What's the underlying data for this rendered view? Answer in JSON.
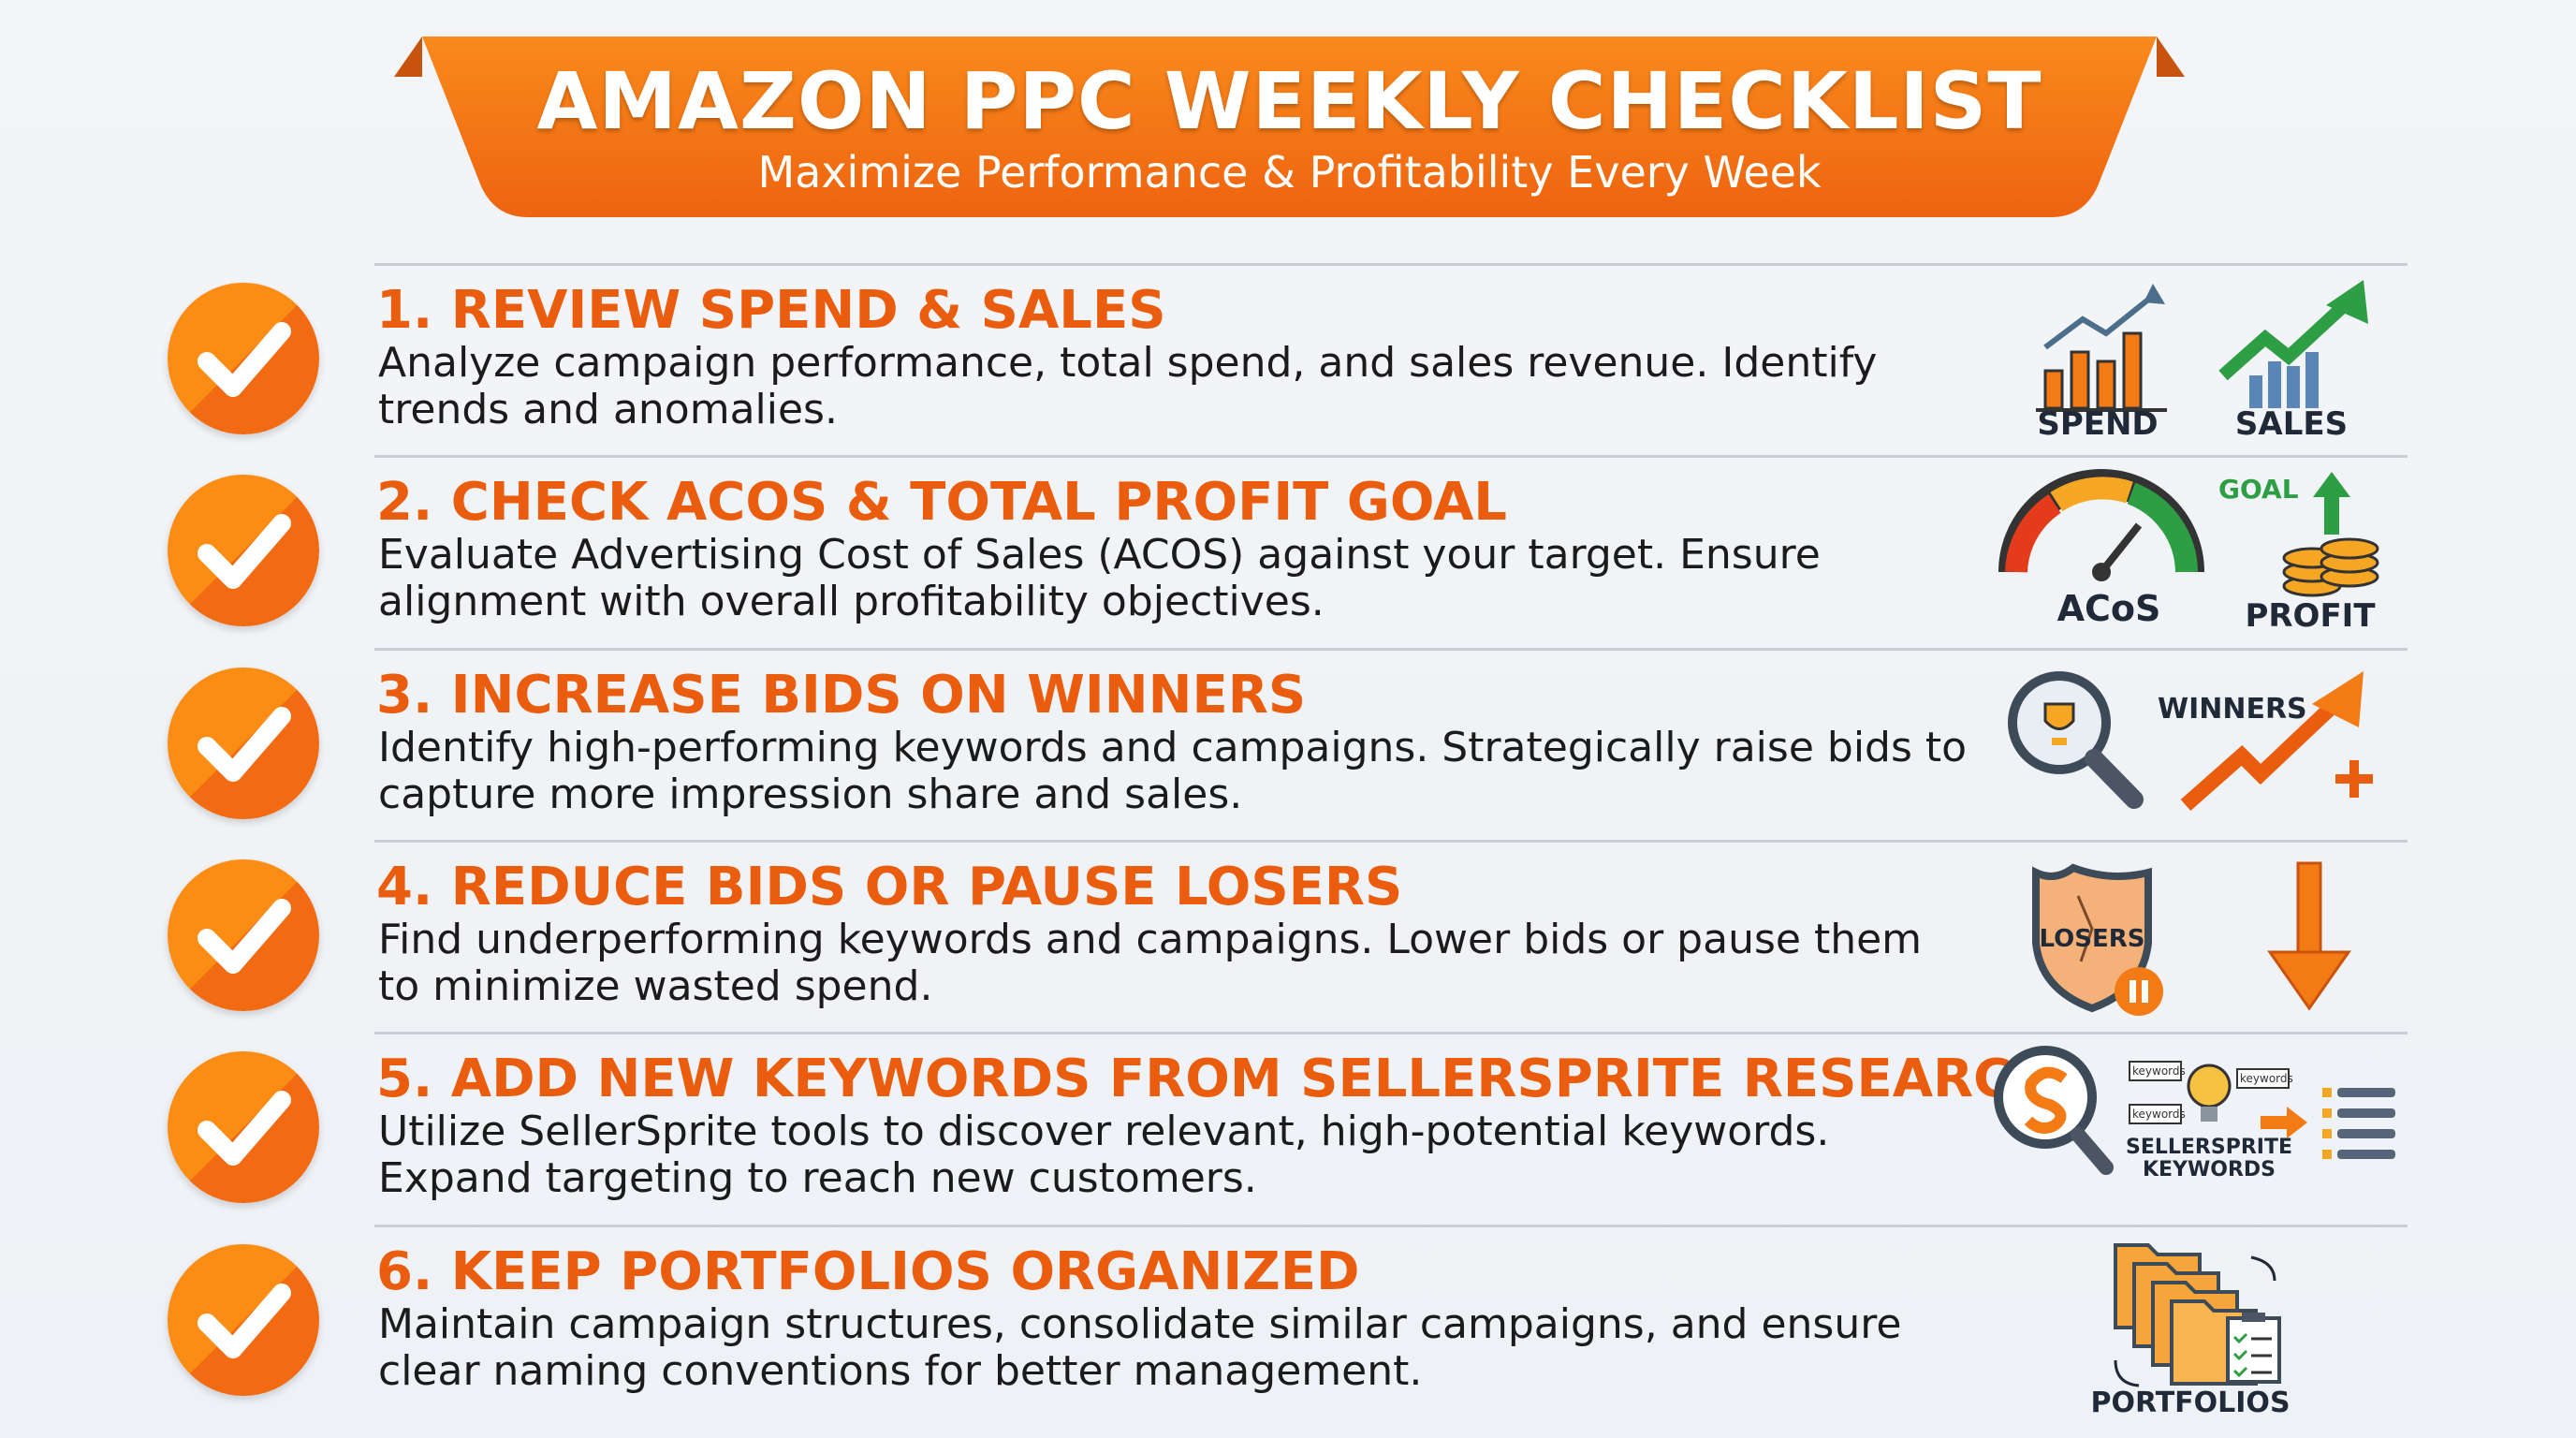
{
  "header": {
    "title": "AMAZON PPC WEEKLY CHECKLIST",
    "subtitle": "Maximize Performance & Profitability Every Week"
  },
  "colors": {
    "accent": "#ea5d0f",
    "banner": "#f47a16",
    "check": "#fb8c14",
    "green": "#2e9e45",
    "dark": "#1f2937"
  },
  "items": [
    {
      "heading": "1. REVIEW SPEND & SALES",
      "desc": "Analyze campaign performance, total spend, and sales revenue. Identify trends and anomalies.",
      "icon_labels": [
        "SPEND",
        "SALES"
      ],
      "icons": [
        "bar-chart-icon",
        "trending-up-chart-icon"
      ]
    },
    {
      "heading": "2. CHECK ACOS & TOTAL PROFIT GOAL",
      "desc": "Evaluate Advertising Cost of Sales (ACOS) against your target. Ensure alignment with overall profitability objectives.",
      "icon_labels": [
        "ACoS",
        "PROFIT",
        "GOAL"
      ],
      "icons": [
        "gauge-icon",
        "coins-icon"
      ]
    },
    {
      "heading": "3. INCREASE BIDS ON WINNERS",
      "desc": "Identify high-performing keywords and campaigns. Strategically raise bids to capture more impression share and sales.",
      "icon_labels": [
        "WINNERS"
      ],
      "icons": [
        "trophy-magnifier-icon",
        "arrow-up-plus-icon"
      ]
    },
    {
      "heading": "4. REDUCE BIDS OR PAUSE LOSERS",
      "desc": "Find underperforming keywords and campaigns. Lower bids or pause them to minimize wasted spend.",
      "icon_labels": [
        "LOSERS"
      ],
      "icons": [
        "cracked-shield-pause-icon",
        "arrow-down-icon"
      ]
    },
    {
      "heading": "5. ADD NEW KEYWORDS FROM SELLERSPRITE RESEARCH",
      "desc": "Utilize SellerSprite tools to discover relevant, high-potential keywords. Expand targeting to reach new customers.",
      "icon_labels": [
        "SELLERSPRITE",
        "KEYWORDS",
        "keywords"
      ],
      "icons": [
        "sellersprite-magnifier-icon",
        "lightbulb-icon",
        "list-icon"
      ]
    },
    {
      "heading": "6. KEEP PORTFOLIOS ORGANIZED",
      "desc": "Maintain campaign structures, consolidate similar campaigns, and ensure clear naming conventions for better management.",
      "icon_labels": [
        "PORTFOLIOS"
      ],
      "icons": [
        "folders-icon",
        "clipboard-checklist-icon"
      ]
    }
  ]
}
